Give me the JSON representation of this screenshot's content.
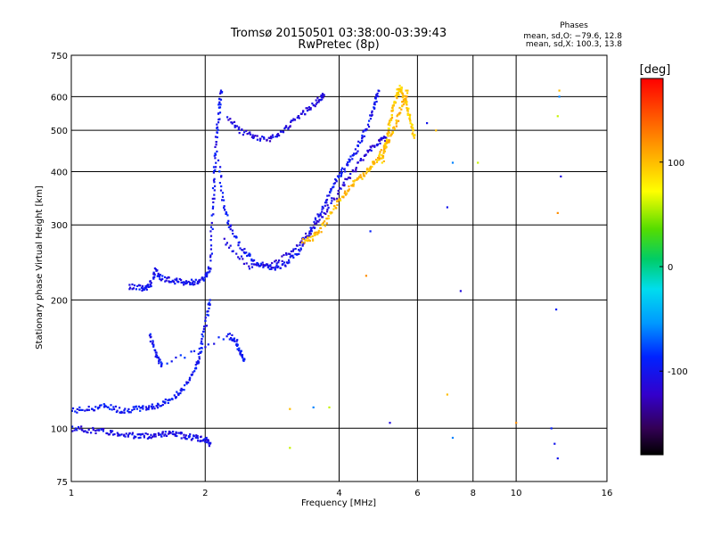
{
  "chart_data": {
    "type": "scatter",
    "title": "Tromsø 20150501 03:38:00-03:39:43",
    "subtitle": "RwPretec (8p)",
    "xlabel": "Frequency [MHz]",
    "ylabel": "Stationary phase Virtual Height [km]",
    "x_scale": "log",
    "y_scale": "log",
    "xlim": [
      1,
      16
    ],
    "ylim": [
      75,
      750
    ],
    "x_ticks": [
      1,
      2,
      4,
      6,
      8,
      10,
      16
    ],
    "x_tick_labels": [
      "1",
      "2",
      "4",
      "6",
      "8",
      "10",
      "16"
    ],
    "y_ticks": [
      75,
      100,
      200,
      300,
      400,
      500,
      600,
      750
    ],
    "y_tick_labels": [
      "75",
      "100",
      "200",
      "300",
      "400",
      "500",
      "600",
      "750"
    ],
    "grid": true,
    "color_by": "phase",
    "colorbar": {
      "label": "[deg]",
      "range": [
        -180,
        180
      ],
      "tick_values": [
        100,
        0,
        -100
      ],
      "tick_labels": [
        "100",
        "0",
        "-100"
      ]
    },
    "stats": {
      "header": "Phases",
      "line_O": "mean, sd,O: −79.6, 12.8",
      "line_X": "mean, sd,X: 100.3, 13.8"
    },
    "traces": [
      {
        "mode": "O",
        "phase": -95,
        "points": [
          [
            1.0,
            110
          ],
          [
            1.1,
            111
          ],
          [
            1.2,
            113
          ],
          [
            1.3,
            110
          ],
          [
            1.4,
            111
          ],
          [
            1.5,
            112
          ],
          [
            1.6,
            114
          ],
          [
            1.7,
            118
          ],
          [
            1.8,
            125
          ],
          [
            1.9,
            138
          ],
          [
            1.95,
            150
          ],
          [
            2.0,
            175
          ],
          [
            2.05,
            200
          ]
        ]
      },
      {
        "mode": "O",
        "phase": -105,
        "points": [
          [
            1.0,
            100
          ],
          [
            1.1,
            99
          ],
          [
            1.2,
            98
          ],
          [
            1.3,
            97
          ],
          [
            1.4,
            96
          ],
          [
            1.5,
            96
          ],
          [
            1.6,
            97
          ],
          [
            1.7,
            97
          ],
          [
            1.8,
            96
          ],
          [
            1.9,
            95
          ],
          [
            2.0,
            94
          ],
          [
            2.05,
            92
          ]
        ]
      },
      {
        "mode": "O",
        "phase": -100,
        "points": [
          [
            1.35,
            215
          ],
          [
            1.45,
            213
          ],
          [
            1.5,
            215
          ],
          [
            1.55,
            235
          ],
          [
            1.6,
            225
          ],
          [
            1.7,
            222
          ],
          [
            1.8,
            220
          ],
          [
            1.9,
            220
          ],
          [
            2.0,
            225
          ],
          [
            2.05,
            240
          ],
          [
            2.08,
            320
          ],
          [
            2.1,
            400
          ],
          [
            2.12,
            480
          ],
          [
            2.15,
            560
          ],
          [
            2.17,
            620
          ]
        ]
      },
      {
        "mode": "O",
        "phase": -98,
        "points": [
          [
            2.15,
            420
          ],
          [
            2.2,
            330
          ],
          [
            2.3,
            290
          ],
          [
            2.45,
            260
          ],
          [
            2.6,
            245
          ],
          [
            2.8,
            238
          ],
          [
            3.0,
            242
          ],
          [
            3.2,
            255
          ],
          [
            3.4,
            280
          ],
          [
            3.6,
            315
          ],
          [
            3.8,
            355
          ],
          [
            4.0,
            390
          ],
          [
            4.2,
            420
          ],
          [
            4.4,
            455
          ],
          [
            4.6,
            500
          ],
          [
            4.8,
            570
          ],
          [
            4.9,
            620
          ]
        ]
      },
      {
        "mode": "O",
        "phase": -110,
        "points": [
          [
            2.25,
            530
          ],
          [
            2.4,
            500
          ],
          [
            2.6,
            480
          ],
          [
            2.8,
            478
          ],
          [
            3.0,
            500
          ],
          [
            3.2,
            530
          ],
          [
            3.4,
            560
          ],
          [
            3.6,
            590
          ],
          [
            3.7,
            605
          ]
        ]
      },
      {
        "mode": "O",
        "phase": -112,
        "points": [
          [
            2.2,
            275
          ],
          [
            2.5,
            240
          ],
          [
            2.8,
            240
          ],
          [
            3.1,
            258
          ],
          [
            3.4,
            285
          ],
          [
            3.7,
            320
          ],
          [
            4.0,
            360
          ],
          [
            4.3,
            400
          ],
          [
            4.6,
            440
          ],
          [
            4.9,
            470
          ],
          [
            5.1,
            480
          ]
        ]
      },
      {
        "mode": "X",
        "phase": 100,
        "points": [
          [
            3.3,
            275
          ],
          [
            3.5,
            280
          ],
          [
            3.7,
            300
          ],
          [
            3.9,
            330
          ],
          [
            4.1,
            355
          ],
          [
            4.3,
            375
          ],
          [
            4.5,
            390
          ],
          [
            4.7,
            410
          ],
          [
            4.9,
            430
          ],
          [
            5.1,
            460
          ],
          [
            5.3,
            500
          ],
          [
            5.5,
            560
          ],
          [
            5.7,
            620
          ]
        ]
      },
      {
        "mode": "X",
        "phase": 95,
        "points": [
          [
            5.0,
            420
          ],
          [
            5.1,
            470
          ],
          [
            5.2,
            520
          ],
          [
            5.3,
            570
          ],
          [
            5.4,
            610
          ],
          [
            5.5,
            630
          ],
          [
            5.6,
            600
          ],
          [
            5.7,
            560
          ],
          [
            5.8,
            520
          ],
          [
            5.9,
            480
          ]
        ]
      },
      {
        "mode": "O",
        "phase": -95,
        "points": [
          [
            1.5,
            165
          ],
          [
            1.55,
            150
          ],
          [
            1.6,
            140
          ],
          [
            2.25,
            165
          ],
          [
            2.35,
            160
          ],
          [
            2.4,
            150
          ],
          [
            2.45,
            145
          ]
        ]
      },
      {
        "mode": "scatter",
        "phase": 0,
        "points": [
          [
            7.0,
            330
          ],
          [
            7.0,
            120
          ],
          [
            7.2,
            420
          ],
          [
            8.2,
            420
          ],
          [
            7.5,
            210
          ],
          [
            10.0,
            103
          ],
          [
            12.0,
            100
          ],
          [
            12.2,
            92
          ],
          [
            12.5,
            620
          ],
          [
            12.5,
            600
          ],
          [
            12.4,
            540
          ],
          [
            12.6,
            390
          ],
          [
            12.4,
            320
          ],
          [
            12.3,
            190
          ],
          [
            12.4,
            85
          ],
          [
            3.1,
            111
          ],
          [
            3.5,
            112
          ],
          [
            3.8,
            112
          ],
          [
            5.2,
            103
          ],
          [
            4.6,
            228
          ],
          [
            4.7,
            290
          ],
          [
            6.3,
            520
          ],
          [
            6.6,
            500
          ],
          [
            7.2,
            95
          ],
          [
            3.1,
            90
          ]
        ]
      }
    ]
  }
}
